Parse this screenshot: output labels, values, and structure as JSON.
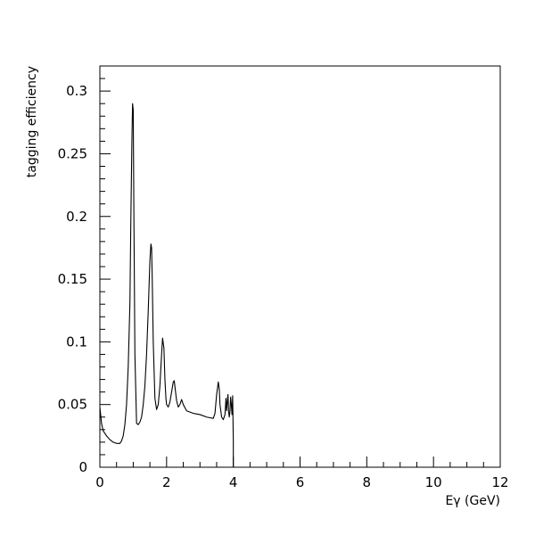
{
  "chart_data": {
    "type": "line",
    "title": "",
    "xlabel": "Eγ (GeV)",
    "ylabel": "tagging efficiency",
    "xlim": [
      0,
      12
    ],
    "ylim": [
      0,
      0.32
    ],
    "x_ticks": [
      0,
      2,
      4,
      6,
      8,
      10,
      12
    ],
    "x_tick_labels": [
      "0",
      "2",
      "4",
      "6",
      "8",
      "10",
      "12"
    ],
    "y_ticks": [
      0,
      0.05,
      0.1,
      0.15,
      0.2,
      0.25,
      0.3
    ],
    "y_tick_labels": [
      "0",
      "0.05",
      "0.1",
      "0.15",
      "0.2",
      "0.25",
      "0.3"
    ],
    "grid": false,
    "legend": "none",
    "series": [
      {
        "color": "#000000",
        "x": [
          0.0,
          0.05,
          0.1,
          0.2,
          0.3,
          0.4,
          0.5,
          0.6,
          0.65,
          0.7,
          0.75,
          0.8,
          0.85,
          0.9,
          0.93,
          0.96,
          0.98,
          1.0,
          1.02,
          1.05,
          1.1,
          1.15,
          1.2,
          1.25,
          1.3,
          1.35,
          1.4,
          1.45,
          1.5,
          1.53,
          1.55,
          1.57,
          1.6,
          1.65,
          1.7,
          1.75,
          1.8,
          1.85,
          1.88,
          1.92,
          1.95,
          1.98,
          2.0,
          2.05,
          2.1,
          2.15,
          2.2,
          2.23,
          2.26,
          2.3,
          2.35,
          2.4,
          2.45,
          2.5,
          2.6,
          2.8,
          3.0,
          3.2,
          3.4,
          3.45,
          3.5,
          3.55,
          3.58,
          3.6,
          3.65,
          3.7,
          3.75,
          3.78,
          3.8,
          3.82,
          3.84,
          3.86,
          3.88,
          3.9,
          3.92,
          3.94,
          3.96,
          3.98,
          4.0,
          4.0
        ],
        "y": [
          0.048,
          0.035,
          0.029,
          0.025,
          0.022,
          0.02,
          0.019,
          0.019,
          0.021,
          0.025,
          0.034,
          0.05,
          0.08,
          0.13,
          0.2,
          0.26,
          0.29,
          0.285,
          0.2,
          0.09,
          0.035,
          0.034,
          0.036,
          0.04,
          0.05,
          0.065,
          0.09,
          0.125,
          0.165,
          0.178,
          0.175,
          0.15,
          0.1,
          0.055,
          0.046,
          0.05,
          0.065,
          0.09,
          0.103,
          0.095,
          0.07,
          0.055,
          0.05,
          0.048,
          0.052,
          0.06,
          0.068,
          0.069,
          0.062,
          0.053,
          0.048,
          0.05,
          0.054,
          0.05,
          0.045,
          0.043,
          0.042,
          0.04,
          0.039,
          0.043,
          0.058,
          0.068,
          0.062,
          0.05,
          0.04,
          0.038,
          0.042,
          0.055,
          0.045,
          0.052,
          0.058,
          0.044,
          0.04,
          0.045,
          0.056,
          0.05,
          0.042,
          0.057,
          0.02,
          0.0
        ]
      }
    ]
  }
}
